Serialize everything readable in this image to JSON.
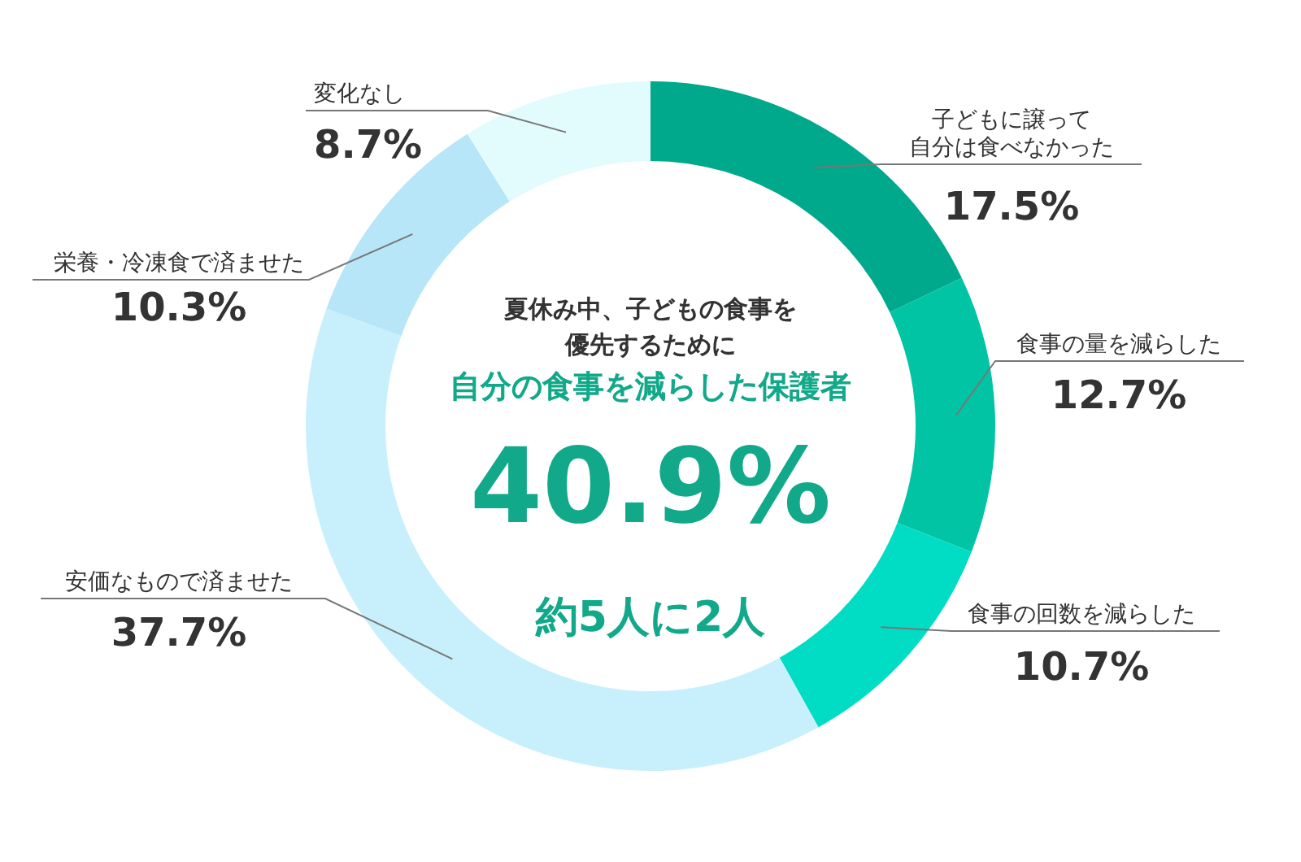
{
  "chart_data": {
    "type": "donut",
    "categories": [
      "子どもに譲って自分は食べなかった",
      "食事の量を減らした",
      "食事の回数を減らした",
      "安価なもので済ませた",
      "栄養・冷凍食で済ませた",
      "変化なし"
    ],
    "values": [
      17.5,
      12.7,
      10.7,
      37.7,
      10.3,
      8.7
    ],
    "value_labels": [
      "17.5%",
      "12.7%",
      "10.7%",
      "37.7%",
      "10.3%",
      "8.7%"
    ],
    "colors": [
      "#00a98c",
      "#00c4a4",
      "#00ddc4",
      "#c8f0fc",
      "#b6e6f8",
      "#e2fbfd"
    ],
    "annotations": [
      "夏休み中、子どもの食事を",
      "優先するために",
      "自分の食事を減らした保護者",
      "40.9%",
      "約5人に2人"
    ]
  }
}
